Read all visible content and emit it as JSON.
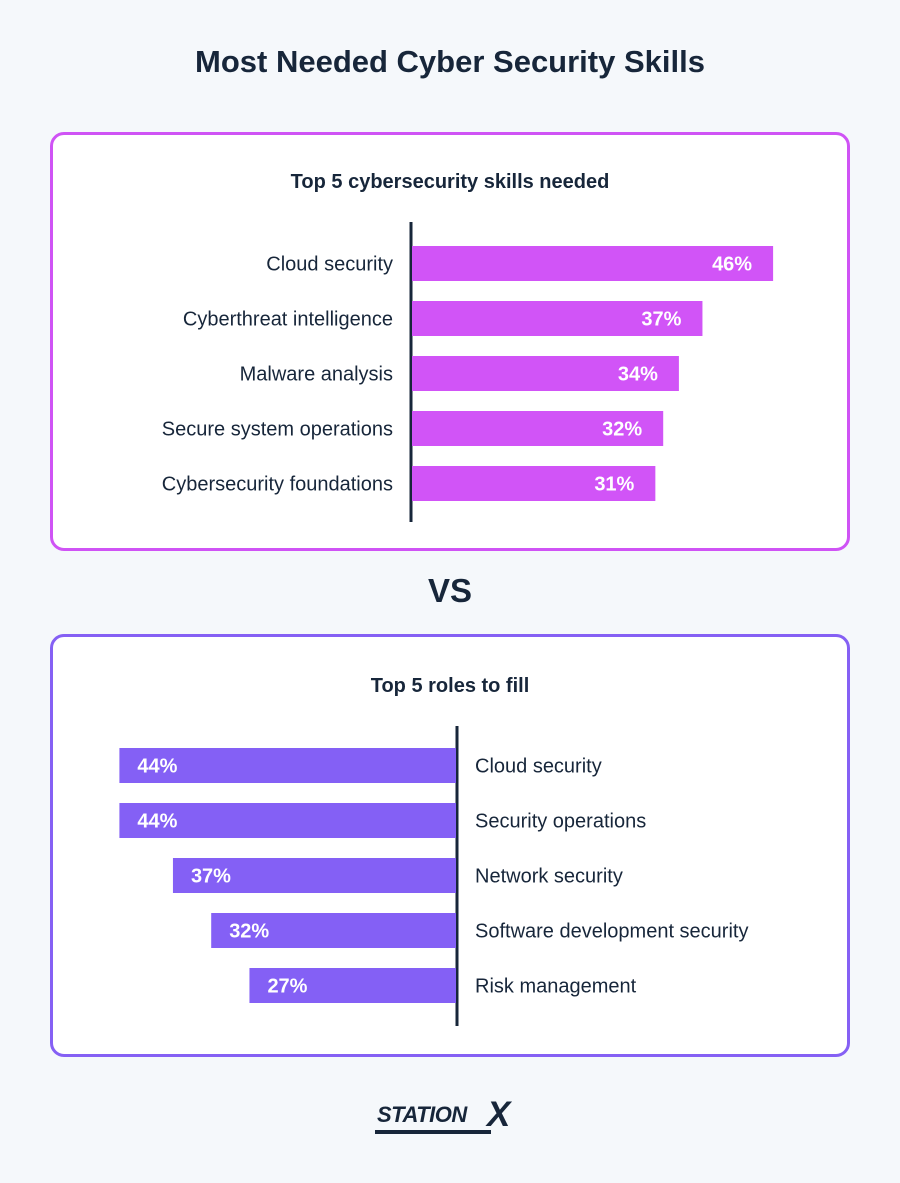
{
  "title": "Most Needed Cyber Security Skills",
  "vs_label": "VS",
  "logo": {
    "text": "STATION",
    "mark": "X"
  },
  "colors": {
    "skills_bar": "#d154f7",
    "roles_bar": "#8460f5",
    "axis": "#17263a",
    "text": "#17263a"
  },
  "chart_data": [
    {
      "type": "bar",
      "orientation": "horizontal",
      "title": "Top 5 cybersecurity skills needed",
      "categories": [
        "Cloud security",
        "Cyberthreat intelligence",
        "Malware analysis",
        "Secure system operations",
        "Cybersecurity foundations"
      ],
      "values": [
        46,
        37,
        34,
        32,
        31
      ],
      "value_labels": [
        "46%",
        "37%",
        "34%",
        "32%",
        "31%"
      ],
      "unit": "%",
      "direction": "right"
    },
    {
      "type": "bar",
      "orientation": "horizontal",
      "title": "Top 5 roles to fill",
      "categories": [
        "Cloud security",
        "Security operations",
        "Network security",
        "Software development security",
        "Risk management"
      ],
      "values": [
        44,
        44,
        37,
        32,
        27
      ],
      "value_labels": [
        "44%",
        "44%",
        "37%",
        "32%",
        "27%"
      ],
      "unit": "%",
      "direction": "left"
    }
  ]
}
